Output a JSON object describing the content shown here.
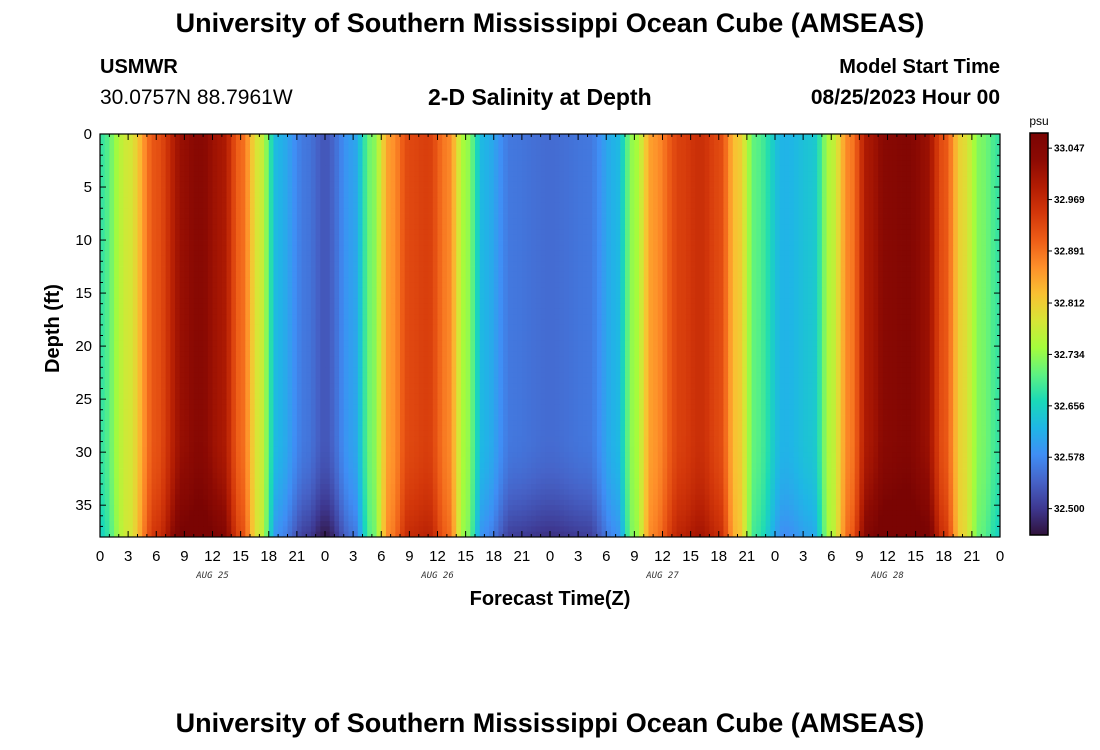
{
  "header": {
    "title": "University of Southern Mississippi Ocean Cube (AMSEAS)",
    "station_name": "USMWR",
    "station_coords": "30.0757N  88.7961W",
    "subtitle": "2-D Salinity at Depth",
    "model_start_label": "Model Start Time",
    "model_start_value": "08/25/2023 Hour 00"
  },
  "footer": {
    "title": "University of Southern Mississippi Ocean Cube (AMSEAS)"
  },
  "chart_data": {
    "type": "heatmap",
    "title": "2-D Salinity at Depth",
    "xlabel": "Forecast Time(Z)",
    "ylabel": "Depth (ft)",
    "x_ticks": [
      "0",
      "3",
      "6",
      "9",
      "12",
      "15",
      "18",
      "21",
      "0",
      "3",
      "6",
      "9",
      "12",
      "15",
      "18",
      "21",
      "0",
      "3",
      "6",
      "9",
      "12",
      "15",
      "18",
      "21",
      "0",
      "3",
      "6",
      "9",
      "12",
      "15",
      "18",
      "21",
      "0"
    ],
    "x_range_hours": [
      0,
      96
    ],
    "day_labels": [
      {
        "label": "AUG 25",
        "hour": 12
      },
      {
        "label": "AUG 26",
        "hour": 36
      },
      {
        "label": "AUG 27",
        "hour": 60
      },
      {
        "label": "AUG 28",
        "hour": 84
      }
    ],
    "y_ticks": [
      0,
      5,
      10,
      15,
      20,
      25,
      30,
      35
    ],
    "y_range_ft": [
      0,
      38
    ],
    "y_inverted": true,
    "colorbar": {
      "unit": "psu",
      "ticks": [
        "33.047",
        "32.969",
        "32.891",
        "32.812",
        "32.734",
        "32.656",
        "32.578",
        "32.500"
      ],
      "range": [
        32.46,
        33.07
      ]
    },
    "surface_salinity_by_hour": [
      [
        0,
        32.68
      ],
      [
        3,
        32.78
      ],
      [
        6,
        32.92
      ],
      [
        9,
        33.02
      ],
      [
        10.5,
        33.04
      ],
      [
        13,
        33.0
      ],
      [
        15,
        32.9
      ],
      [
        17,
        32.78
      ],
      [
        19,
        32.62
      ],
      [
        22,
        32.56
      ],
      [
        24,
        32.53
      ],
      [
        27,
        32.6
      ],
      [
        29,
        32.72
      ],
      [
        31,
        32.86
      ],
      [
        33,
        32.93
      ],
      [
        35,
        32.94
      ],
      [
        37,
        32.88
      ],
      [
        39,
        32.74
      ],
      [
        41,
        32.62
      ],
      [
        44,
        32.56
      ],
      [
        48,
        32.55
      ],
      [
        52,
        32.56
      ],
      [
        55,
        32.62
      ],
      [
        57,
        32.74
      ],
      [
        59,
        32.86
      ],
      [
        62,
        32.94
      ],
      [
        64,
        32.96
      ],
      [
        66,
        32.93
      ],
      [
        68,
        32.82
      ],
      [
        70,
        32.7
      ],
      [
        73,
        32.62
      ],
      [
        76,
        32.64
      ],
      [
        78,
        32.76
      ],
      [
        80,
        32.88
      ],
      [
        82,
        33.0
      ],
      [
        84,
        33.04
      ],
      [
        86,
        33.05
      ],
      [
        88,
        33.02
      ],
      [
        90,
        32.92
      ],
      [
        92,
        32.8
      ],
      [
        94,
        32.72
      ],
      [
        96,
        32.68
      ]
    ],
    "colors": {
      "colormap": [
        "#30123b",
        "#3e3891",
        "#4663c8",
        "#3f8ef5",
        "#1fb6e6",
        "#1ad9b8",
        "#5ef281",
        "#a5fc3c",
        "#d7e536",
        "#f9c132",
        "#fe8f2a",
        "#ee5d17",
        "#d3370a",
        "#b21c03",
        "#8c0a03",
        "#7a0403"
      ],
      "axis": "#000000"
    }
  }
}
